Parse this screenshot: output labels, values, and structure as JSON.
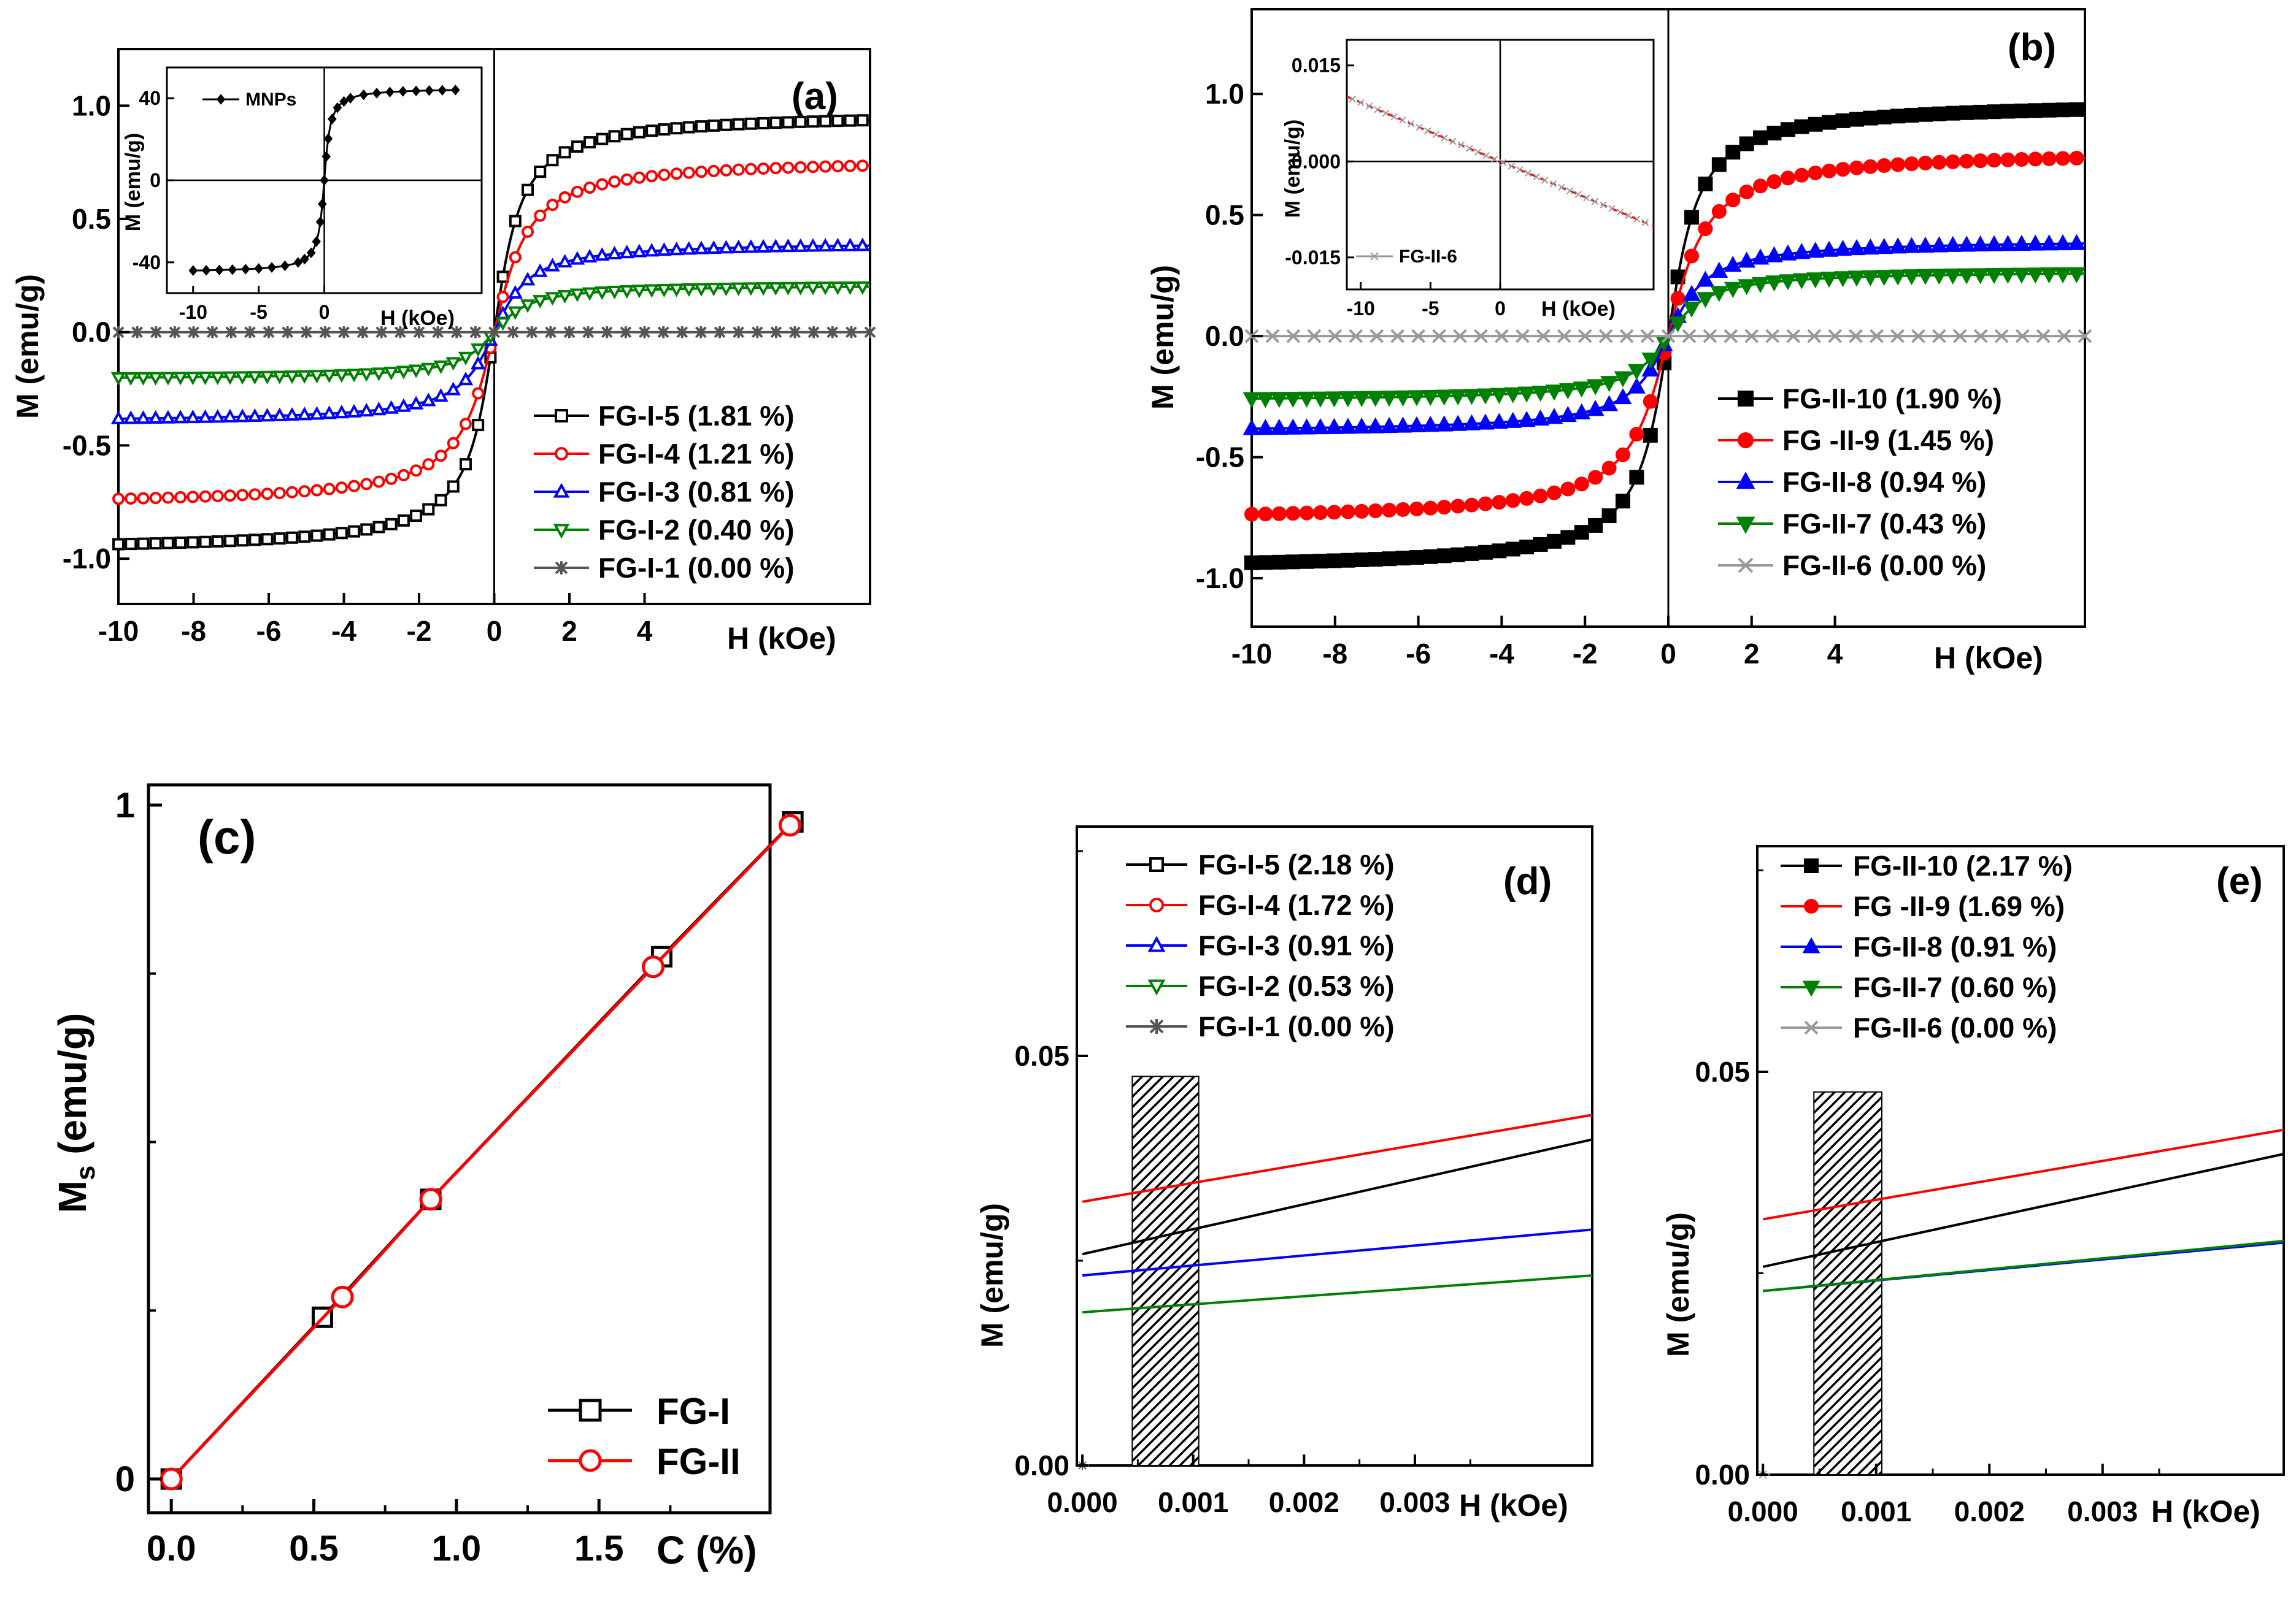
{
  "chart_data": [
    {
      "id": "a",
      "type": "line",
      "panel_label": "(a)",
      "xlabel": "H (kOe)",
      "ylabel": "M (emu/g)",
      "xlim": [
        -10,
        10
      ],
      "ylim": [
        -1.2,
        1.25
      ],
      "x_ticks": [
        "-10",
        "-8",
        "-6",
        "-4",
        "-2",
        "0",
        "2",
        "4"
      ],
      "y_ticks": [
        "-1.0",
        "-0.5",
        "0.0",
        "0.5",
        "1.0"
      ],
      "series": [
        {
          "name": "FG-I-5 (1.81 %)",
          "color": "#000000",
          "marker": "open-square",
          "ms": 0.97,
          "trend": "saturating"
        },
        {
          "name": "FG-I-4 (1.21 %)",
          "color": "#ff0000",
          "marker": "open-circle",
          "ms": 0.77,
          "trend": "saturating"
        },
        {
          "name": "FG-I-3 (0.81 %)",
          "color": "#0000ff",
          "marker": "open-triangle-up",
          "ms": 0.4,
          "trend": "saturating"
        },
        {
          "name": "FG-I-2 (0.40 %)",
          "color": "#008000",
          "marker": "open-triangle-down",
          "ms": 0.21,
          "trend": "saturating"
        },
        {
          "name": "FG-I-1 (0.00 %)",
          "color": "#555555",
          "marker": "star",
          "ms": 0.0,
          "trend": "flat"
        }
      ],
      "inset": {
        "xlabel": "H (kOe)",
        "ylabel": "M (emu/g)",
        "xlim": [
          -12,
          12
        ],
        "ylim": [
          -55,
          55
        ],
        "x_ticks": [
          "-10",
          "-5",
          "0"
        ],
        "y_ticks": [
          "-40",
          "0",
          "40"
        ],
        "series": [
          {
            "name": "MNPs",
            "color": "#000000",
            "marker": "filled-diamond",
            "ms": 45,
            "trend": "saturating"
          }
        ]
      }
    },
    {
      "id": "b",
      "type": "line",
      "panel_label": "(b)",
      "xlabel": "H (kOe)",
      "ylabel": "M (emu/g)",
      "xlim": [
        -10,
        10
      ],
      "ylim": [
        -1.2,
        1.35
      ],
      "x_ticks": [
        "-10",
        "-8",
        "-6",
        "-4",
        "-2",
        "0",
        "2",
        "4"
      ],
      "y_ticks": [
        "-1.0",
        "-0.5",
        "0.0",
        "0.5",
        "1.0"
      ],
      "series": [
        {
          "name": "FG-II-10 (1.90 %)",
          "color": "#000000",
          "marker": "filled-square",
          "ms": 0.97,
          "trend": "saturating"
        },
        {
          "name": "FG -II-9 (1.45 %)",
          "color": "#ff0000",
          "marker": "filled-circle",
          "ms": 0.77,
          "trend": "saturating"
        },
        {
          "name": "FG-II-8 (0.94 %)",
          "color": "#0000ff",
          "marker": "filled-triangle-up",
          "ms": 0.4,
          "trend": "saturating"
        },
        {
          "name": "FG-II-7 (0.43 %)",
          "color": "#008000",
          "marker": "filled-triangle-down",
          "ms": 0.27,
          "trend": "saturating"
        },
        {
          "name": "FG-II-6 (0.00 %)",
          "color": "#999999",
          "marker": "cross",
          "ms": 0.0,
          "trend": "flat"
        }
      ],
      "inset": {
        "xlabel": "H (kOe)",
        "ylabel": "M (emu/g)",
        "xlim": [
          -11,
          11
        ],
        "ylim": [
          -0.02,
          0.019
        ],
        "x_ticks": [
          "-10",
          "-5",
          "0"
        ],
        "y_ticks": [
          "-0.015",
          "0.000",
          "0.015"
        ],
        "series": [
          {
            "name": "FG-II-6",
            "color": "#999999",
            "marker": "cross",
            "slope": -0.00092,
            "trend": "linear"
          }
        ]
      }
    },
    {
      "id": "c",
      "type": "line",
      "panel_label": "(c)",
      "xlabel": "C (%)",
      "ylabel": "M",
      "ylabel_sub": "s",
      "ylabel_units": " (emu/g)",
      "xlim": [
        -0.08,
        2.1
      ],
      "ylim": [
        -0.05,
        1.03
      ],
      "x_ticks": [
        "0.0",
        "0.5",
        "1.0",
        "1.5"
      ],
      "y_ticks": [
        "0",
        "1"
      ],
      "series": [
        {
          "name": "FG-I",
          "color": "#000000",
          "marker": "open-square",
          "x": [
            0,
            0.53,
            0.91,
            1.72,
            2.18
          ],
          "y": [
            0,
            0.24,
            0.415,
            0.775,
            0.975
          ]
        },
        {
          "name": "FG-II",
          "color": "#ff0000",
          "marker": "open-circle",
          "x": [
            0,
            0.6,
            0.91,
            1.69,
            2.17
          ],
          "y": [
            0,
            0.27,
            0.415,
            0.76,
            0.97
          ]
        }
      ]
    },
    {
      "id": "d",
      "type": "line",
      "panel_label": "(d)",
      "xlabel": "H (kOe)",
      "ylabel": "M (emu/g)",
      "xlim": [
        -5e-05,
        0.0046
      ],
      "ylim": [
        0,
        0.078
      ],
      "x_ticks": [
        "0.000",
        "0.001",
        "0.002",
        "0.003"
      ],
      "y_ticks": [
        "0.00",
        "0.05"
      ],
      "hatch_x": [
        0.00045,
        0.00105
      ],
      "series": [
        {
          "name": "FG-I-5 (2.18 %)",
          "color": "#000000",
          "marker": "open-square",
          "y0": 0.0258,
          "y1": 0.0398
        },
        {
          "name": "FG-I-4 (1.72 %)",
          "color": "#ff0000",
          "marker": "open-circle",
          "y0": 0.0322,
          "y1": 0.0428
        },
        {
          "name": "FG-I-3 (0.91 %)",
          "color": "#0000ff",
          "marker": "open-triangle-up",
          "y0": 0.0232,
          "y1": 0.0288
        },
        {
          "name": "FG-I-2 (0.53 %)",
          "color": "#008000",
          "marker": "open-triangle-down",
          "y0": 0.0187,
          "y1": 0.0232
        },
        {
          "name": "FG-I-1 (0.00 %)",
          "color": "#555555",
          "marker": "star",
          "y0": 0.0,
          "y1": 0.0
        }
      ]
    },
    {
      "id": "e",
      "type": "line",
      "panel_label": "(e)",
      "xlabel": "H (kOe)",
      "ylabel": "M (emu/g)",
      "xlim": [
        -5e-05,
        0.0046
      ],
      "ylim": [
        0,
        0.078
      ],
      "x_ticks": [
        "0.000",
        "0.001",
        "0.002",
        "0.003"
      ],
      "y_ticks": [
        "0.00",
        "0.05"
      ],
      "hatch_x": [
        0.00045,
        0.00105
      ],
      "series": [
        {
          "name": "FG-II-10 (2.17 %)",
          "color": "#000000",
          "marker": "filled-square",
          "y0": 0.0258,
          "y1": 0.0398
        },
        {
          "name": "FG -II-9 (1.69 %)",
          "color": "#ff0000",
          "marker": "filled-circle",
          "y0": 0.0317,
          "y1": 0.0428
        },
        {
          "name": "FG-II-8 (0.91 %)",
          "color": "#0000ff",
          "marker": "filled-triangle-up",
          "y0": 0.0228,
          "y1": 0.0288
        },
        {
          "name": "FG-II-7 (0.60 %)",
          "color": "#008000",
          "marker": "filled-triangle-down",
          "y0": 0.0228,
          "y1": 0.029
        },
        {
          "name": "FG-II-6 (0.00 %)",
          "color": "#999999",
          "marker": "cross",
          "y0": 0.0,
          "y1": 0.0
        }
      ]
    }
  ]
}
